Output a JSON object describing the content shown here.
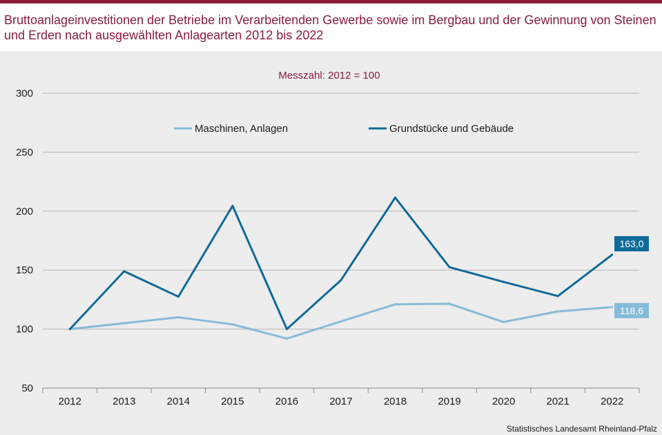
{
  "header": {
    "title": "Bruttoanlageinvestitionen der Betriebe im Verarbeitenden Gewerbe sowie im Bergbau und der Gewinnung von Steinen und Erden nach ausgewählten Anlagearten 2012 bis 2022"
  },
  "footer": {
    "source": "Statistisches Landesamt Rheinland-Pfalz"
  },
  "colors": {
    "brand": "#8b1c3c",
    "light_series": "#86bcd8",
    "dark_series": "#0f6a98",
    "grid": "#b4b4b4"
  },
  "chart_data": {
    "type": "line",
    "subtitle": "Messzahl:  2012 = 100",
    "categories": [
      "2012",
      "2013",
      "2014",
      "2015",
      "2016",
      "2017",
      "2018",
      "2019",
      "2020",
      "2021",
      "2022"
    ],
    "yticks": [
      "300",
      "250",
      "200",
      "150",
      "100",
      "50"
    ],
    "ylim": [
      50,
      300
    ],
    "grid": true,
    "legend_position": "top",
    "series": [
      {
        "name": "Maschinen, Anlagen",
        "color": "#86bcd8",
        "values": [
          100,
          105,
          110,
          104,
          92,
          106.5,
          121,
          121.5,
          106,
          115,
          118.6
        ],
        "end_label": "118,6"
      },
      {
        "name": "Grundstücke und Gebäude",
        "color": "#0f6a98",
        "values": [
          100,
          149,
          127.5,
          204.5,
          100,
          141.5,
          211.5,
          152.5,
          140,
          128,
          163
        ],
        "end_label": "163,0"
      }
    ]
  }
}
